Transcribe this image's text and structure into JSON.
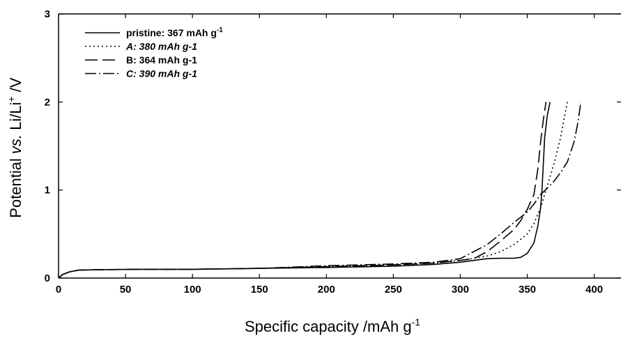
{
  "chart_data": {
    "type": "line",
    "xlabel": {
      "main": "Specific capacity /mAh g",
      "sup": "-1"
    },
    "ylabel": {
      "pre": "Potential ",
      "em": "vs.",
      "mid": " Li/Li",
      "sup": "+",
      "post": " /V"
    },
    "xlim": [
      0,
      420
    ],
    "ylim": [
      0,
      3
    ],
    "xticks": [
      0,
      50,
      100,
      150,
      200,
      250,
      300,
      350,
      400
    ],
    "yticks": [
      0,
      1,
      2,
      3
    ],
    "xtick_labels": [
      "0",
      "50",
      "100",
      "150",
      "200",
      "250",
      "300",
      "350",
      "400"
    ],
    "ytick_labels": [
      "0",
      "1",
      "2",
      "3"
    ],
    "legend_position": "top-left",
    "grid": false,
    "series": [
      {
        "name": "pristine: 367 mAh g",
        "name_sup": "-1",
        "italic": false,
        "dash": "",
        "x": [
          0,
          3,
          8,
          15,
          30,
          60,
          100,
          150,
          200,
          250,
          280,
          300,
          310,
          320,
          330,
          340,
          345,
          350,
          355,
          358,
          360,
          361,
          362,
          363,
          365,
          367
        ],
        "y": [
          0.0,
          0.04,
          0.07,
          0.09,
          0.095,
          0.1,
          0.1,
          0.11,
          0.12,
          0.135,
          0.155,
          0.18,
          0.2,
          0.22,
          0.225,
          0.225,
          0.235,
          0.28,
          0.4,
          0.6,
          0.8,
          1.0,
          1.3,
          1.6,
          1.85,
          2.0
        ]
      },
      {
        "name": "A: 380 mAh g-1",
        "italic": true,
        "dash": "2 4",
        "x": [
          0,
          3,
          8,
          15,
          30,
          60,
          100,
          150,
          200,
          250,
          280,
          300,
          320,
          330,
          340,
          350,
          355,
          360,
          365,
          370,
          375,
          378,
          380
        ],
        "y": [
          0.0,
          0.04,
          0.07,
          0.09,
          0.095,
          0.1,
          0.1,
          0.11,
          0.13,
          0.15,
          0.17,
          0.2,
          0.25,
          0.3,
          0.38,
          0.5,
          0.62,
          0.8,
          1.05,
          1.3,
          1.6,
          1.85,
          2.0
        ]
      },
      {
        "name": "B: 364 mAh g-1",
        "italic": false,
        "dash": "18 7",
        "x": [
          0,
          3,
          8,
          15,
          30,
          60,
          100,
          150,
          200,
          250,
          280,
          300,
          310,
          320,
          330,
          340,
          345,
          350,
          355,
          358,
          360,
          362,
          364
        ],
        "y": [
          0.0,
          0.04,
          0.07,
          0.09,
          0.095,
          0.1,
          0.1,
          0.11,
          0.13,
          0.15,
          0.17,
          0.2,
          0.22,
          0.3,
          0.42,
          0.55,
          0.65,
          0.78,
          0.95,
          1.25,
          1.55,
          1.8,
          2.0
        ]
      },
      {
        "name": "C: 390 mAh g-1",
        "italic": true,
        "dash": "16 4 2 4",
        "x": [
          0,
          3,
          8,
          15,
          30,
          60,
          100,
          150,
          200,
          250,
          280,
          300,
          320,
          330,
          340,
          350,
          355,
          360,
          365,
          370,
          375,
          380,
          385,
          388,
          390
        ],
        "y": [
          0.0,
          0.04,
          0.07,
          0.09,
          0.095,
          0.1,
          0.1,
          0.11,
          0.14,
          0.16,
          0.18,
          0.22,
          0.38,
          0.5,
          0.63,
          0.75,
          0.84,
          0.95,
          1.02,
          1.1,
          1.2,
          1.32,
          1.55,
          1.78,
          2.0
        ]
      }
    ]
  }
}
